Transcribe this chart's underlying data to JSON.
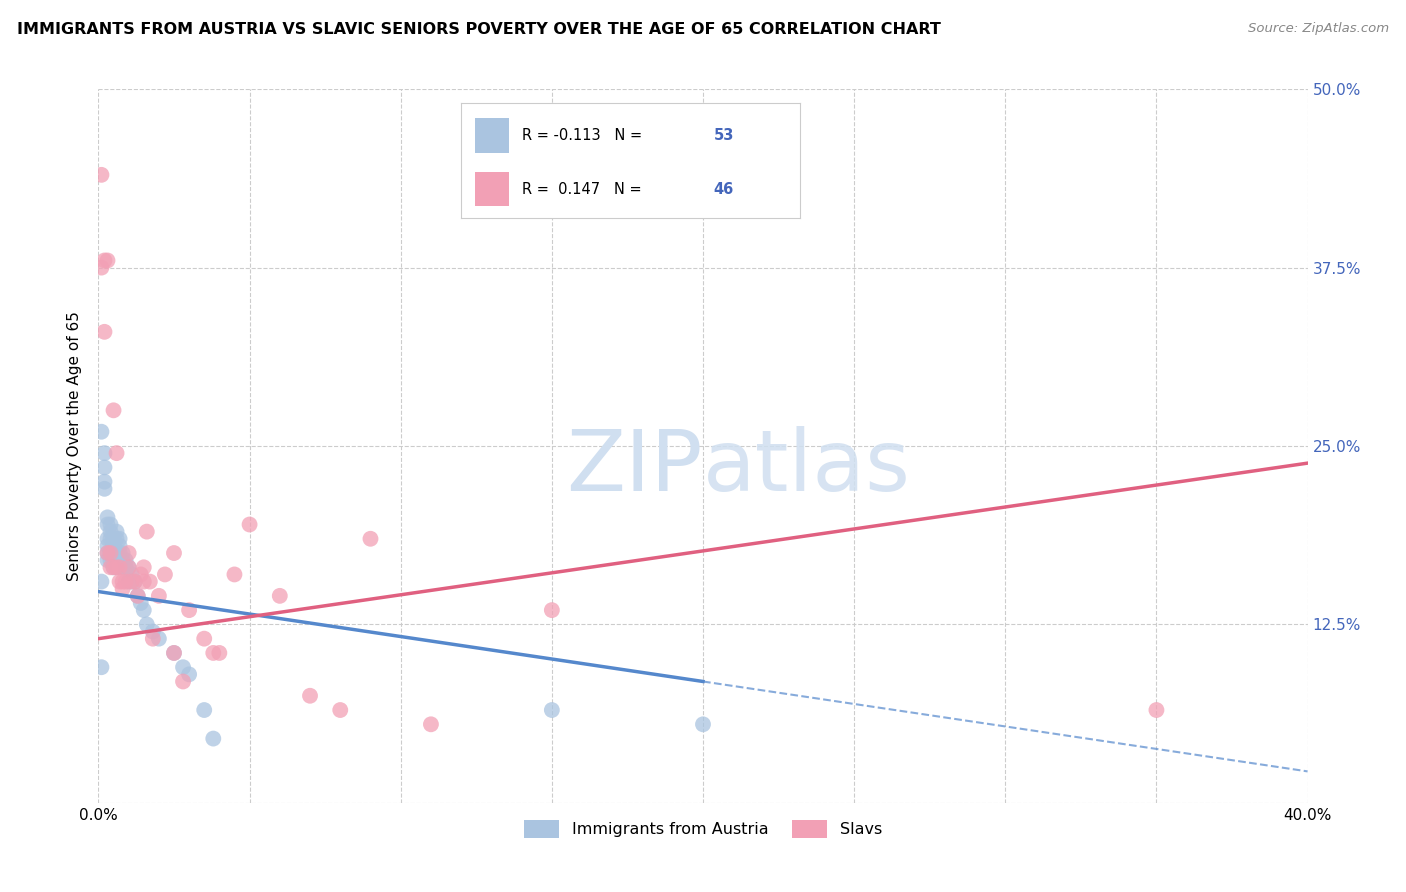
{
  "title": "IMMIGRANTS FROM AUSTRIA VS SLAVIC SENIORS POVERTY OVER THE AGE OF 65 CORRELATION CHART",
  "source": "Source: ZipAtlas.com",
  "ylabel": "Seniors Poverty Over the Age of 65",
  "xlim": [
    0,
    0.4
  ],
  "ylim": [
    0,
    0.5
  ],
  "xticks": [
    0.0,
    0.05,
    0.1,
    0.15,
    0.2,
    0.25,
    0.3,
    0.35,
    0.4
  ],
  "xticklabels_show": [
    "0.0%",
    "40.0%"
  ],
  "yticks": [
    0.0,
    0.125,
    0.25,
    0.375,
    0.5
  ],
  "yticklabels": [
    "",
    "12.5%",
    "25.0%",
    "37.5%",
    "50.0%"
  ],
  "legend_label1": "Immigrants from Austria",
  "legend_label2": "Slavs",
  "r1": -0.113,
  "n1": 53,
  "r2": 0.147,
  "n2": 46,
  "color_austria": "#aac4e0",
  "color_slavs": "#f2a0b5",
  "color_line1": "#5588cc",
  "color_line2": "#e06080",
  "color_tick_right": "#4466bb",
  "watermark_color": "#d0dff0",
  "background_color": "#ffffff",
  "grid_color": "#cccccc",
  "austria_x": [
    0.001,
    0.001,
    0.001,
    0.002,
    0.002,
    0.002,
    0.002,
    0.003,
    0.003,
    0.003,
    0.003,
    0.003,
    0.003,
    0.004,
    0.004,
    0.004,
    0.004,
    0.004,
    0.005,
    0.005,
    0.005,
    0.005,
    0.005,
    0.006,
    0.006,
    0.006,
    0.006,
    0.007,
    0.007,
    0.007,
    0.008,
    0.008,
    0.008,
    0.009,
    0.009,
    0.01,
    0.01,
    0.011,
    0.011,
    0.012,
    0.013,
    0.014,
    0.015,
    0.016,
    0.018,
    0.02,
    0.025,
    0.028,
    0.03,
    0.035,
    0.038,
    0.15,
    0.2
  ],
  "austria_y": [
    0.26,
    0.155,
    0.095,
    0.245,
    0.235,
    0.225,
    0.22,
    0.2,
    0.195,
    0.185,
    0.18,
    0.175,
    0.17,
    0.195,
    0.19,
    0.185,
    0.175,
    0.17,
    0.185,
    0.18,
    0.175,
    0.17,
    0.165,
    0.19,
    0.185,
    0.175,
    0.165,
    0.185,
    0.18,
    0.175,
    0.175,
    0.17,
    0.165,
    0.17,
    0.165,
    0.165,
    0.155,
    0.16,
    0.155,
    0.155,
    0.145,
    0.14,
    0.135,
    0.125,
    0.12,
    0.115,
    0.105,
    0.095,
    0.09,
    0.065,
    0.045,
    0.065,
    0.055
  ],
  "slavs_x": [
    0.001,
    0.001,
    0.002,
    0.002,
    0.003,
    0.003,
    0.004,
    0.004,
    0.005,
    0.005,
    0.006,
    0.006,
    0.007,
    0.007,
    0.008,
    0.008,
    0.009,
    0.01,
    0.01,
    0.011,
    0.012,
    0.013,
    0.014,
    0.015,
    0.015,
    0.016,
    0.017,
    0.018,
    0.02,
    0.022,
    0.025,
    0.025,
    0.028,
    0.03,
    0.035,
    0.038,
    0.04,
    0.045,
    0.05,
    0.06,
    0.07,
    0.08,
    0.09,
    0.11,
    0.15,
    0.35
  ],
  "slavs_y": [
    0.44,
    0.375,
    0.38,
    0.33,
    0.38,
    0.175,
    0.175,
    0.165,
    0.275,
    0.165,
    0.245,
    0.165,
    0.165,
    0.155,
    0.155,
    0.15,
    0.155,
    0.175,
    0.165,
    0.155,
    0.155,
    0.145,
    0.16,
    0.165,
    0.155,
    0.19,
    0.155,
    0.115,
    0.145,
    0.16,
    0.175,
    0.105,
    0.085,
    0.135,
    0.115,
    0.105,
    0.105,
    0.16,
    0.195,
    0.145,
    0.075,
    0.065,
    0.185,
    0.055,
    0.135,
    0.065
  ],
  "line1_x0": 0.0,
  "line1_y0": 0.148,
  "line1_x1": 0.2,
  "line1_y1": 0.085,
  "line1_x1_dash": 0.4,
  "line1_y1_dash": 0.022,
  "line2_x0": 0.0,
  "line2_y0": 0.115,
  "line2_x1": 0.4,
  "line2_y1": 0.238
}
